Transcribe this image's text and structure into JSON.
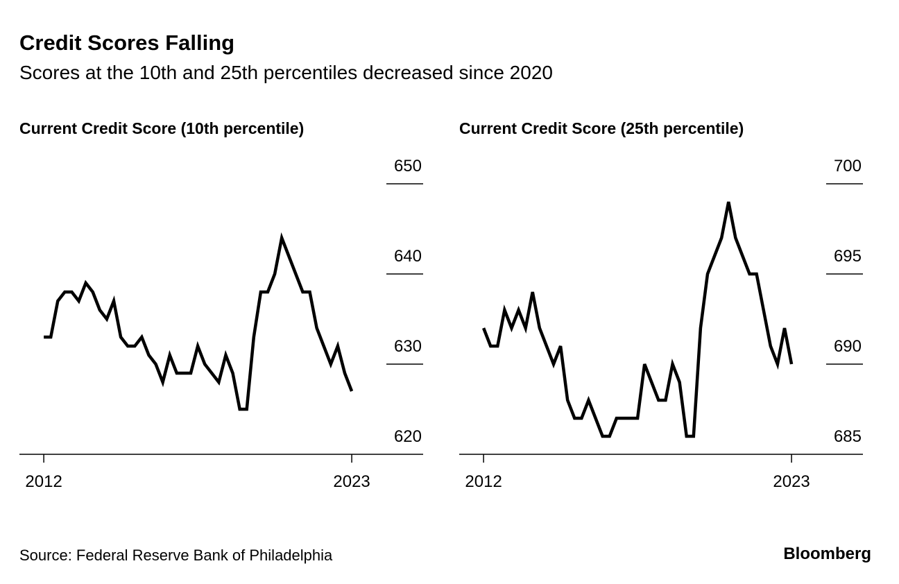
{
  "title": "Credit Scores Falling",
  "subtitle": "Scores at the 10th and 25th percentiles decreased since 2020",
  "source": "Source: Federal Reserve Bank of Philadelphia",
  "logo": "Bloomberg",
  "chart_data": [
    {
      "type": "line",
      "title": "Current Credit Score (10th percentile)",
      "color": "#000000",
      "x": [
        2012,
        2012.25,
        2012.5,
        2012.75,
        2013,
        2013.25,
        2013.5,
        2013.75,
        2014,
        2014.25,
        2014.5,
        2014.75,
        2015,
        2015.25,
        2015.5,
        2015.75,
        2016,
        2016.25,
        2016.5,
        2016.75,
        2017,
        2017.25,
        2017.5,
        2017.75,
        2018,
        2018.25,
        2018.5,
        2018.75,
        2019,
        2019.25,
        2019.5,
        2019.75,
        2020,
        2020.25,
        2020.5,
        2020.75,
        2021,
        2021.25,
        2021.5,
        2021.75,
        2022,
        2022.25,
        2022.5,
        2022.75,
        2023
      ],
      "values": [
        633,
        633,
        637,
        638,
        638,
        637,
        639,
        638,
        636,
        635,
        637,
        633,
        632,
        632,
        633,
        631,
        630,
        628,
        631,
        629,
        629,
        629,
        632,
        630,
        629,
        628,
        631,
        629,
        625,
        625,
        633,
        638,
        638,
        640,
        644,
        642,
        640,
        638,
        638,
        634,
        632,
        630,
        632,
        629,
        627
      ],
      "xlim": [
        2011.13,
        2025.55
      ],
      "xticks": [
        2012,
        2023
      ],
      "ylim": [
        620,
        650
      ],
      "yticks": [
        620,
        630,
        640,
        650
      ]
    },
    {
      "type": "line",
      "title": "Current Credit Score (25th percentile)",
      "color": "#000000",
      "x": [
        2012,
        2012.25,
        2012.5,
        2012.75,
        2013,
        2013.25,
        2013.5,
        2013.75,
        2014,
        2014.25,
        2014.5,
        2014.75,
        2015,
        2015.25,
        2015.5,
        2015.75,
        2016,
        2016.25,
        2016.5,
        2016.75,
        2017,
        2017.25,
        2017.5,
        2017.75,
        2018,
        2018.25,
        2018.5,
        2018.75,
        2019,
        2019.25,
        2019.5,
        2019.75,
        2020,
        2020.25,
        2020.5,
        2020.75,
        2021,
        2021.25,
        2021.5,
        2021.75,
        2022,
        2022.25,
        2022.5,
        2022.75,
        2023
      ],
      "values": [
        692,
        691,
        691,
        693,
        692,
        693,
        692,
        694,
        692,
        691,
        690,
        691,
        688,
        687,
        687,
        688,
        687,
        686,
        686,
        687,
        687,
        687,
        687,
        690,
        689,
        688,
        688,
        690,
        689,
        686,
        686,
        692,
        695,
        696,
        697,
        699,
        697,
        696,
        695,
        695,
        693,
        691,
        690,
        692,
        690
      ],
      "xlim": [
        2011.13,
        2025.55
      ],
      "xticks": [
        2012,
        2023
      ],
      "ylim": [
        685,
        700
      ],
      "yticks": [
        685,
        690,
        695,
        700
      ]
    }
  ]
}
